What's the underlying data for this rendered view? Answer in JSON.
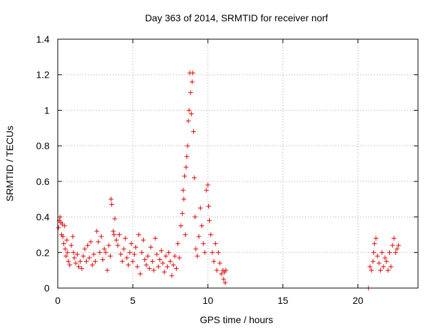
{
  "chart_data": {
    "type": "scatter",
    "title": "Day 363 of 2014, SRMTID for receiver norf",
    "xlabel": "GPS time / hours",
    "ylabel": "SRMTID / TECUs",
    "xlim": [
      0,
      24
    ],
    "ylim": [
      0,
      1.4
    ],
    "xticks": [
      0,
      5,
      10,
      15,
      20
    ],
    "xtick_labels": [
      "0",
      "5",
      "10",
      "15",
      "20"
    ],
    "yticks": [
      0,
      0.2,
      0.4,
      0.6,
      0.8,
      1.0,
      1.2,
      1.4
    ],
    "ytick_labels": [
      "0",
      "0.2",
      "0.4",
      "0.6",
      "0.8",
      "1",
      "1.2",
      "1.4"
    ],
    "grid": true,
    "marker": "plus",
    "series_color": "#e00000",
    "series": [
      {
        "name": "norf",
        "points": [
          [
            0.05,
            0.34
          ],
          [
            0.1,
            0.38
          ],
          [
            0.15,
            0.4
          ],
          [
            0.2,
            0.37
          ],
          [
            0.25,
            0.3
          ],
          [
            0.3,
            0.36
          ],
          [
            0.35,
            0.29
          ],
          [
            0.4,
            0.25
          ],
          [
            0.45,
            0.35
          ],
          [
            0.5,
            0.22
          ],
          [
            0.55,
            0.18
          ],
          [
            0.6,
            0.27
          ],
          [
            0.65,
            0.2
          ],
          [
            0.7,
            0.15
          ],
          [
            0.8,
            0.13
          ],
          [
            0.9,
            0.24
          ],
          [
            1.0,
            0.29
          ],
          [
            1.05,
            0.2
          ],
          [
            1.1,
            0.17
          ],
          [
            1.2,
            0.14
          ],
          [
            1.3,
            0.19
          ],
          [
            1.4,
            0.12
          ],
          [
            1.5,
            0.15
          ],
          [
            1.6,
            0.11
          ],
          [
            1.7,
            0.18
          ],
          [
            1.8,
            0.22
          ],
          [
            1.9,
            0.15
          ],
          [
            2.0,
            0.24
          ],
          [
            2.1,
            0.17
          ],
          [
            2.2,
            0.26
          ],
          [
            2.3,
            0.13
          ],
          [
            2.4,
            0.19
          ],
          [
            2.5,
            0.15
          ],
          [
            2.6,
            0.32
          ],
          [
            2.7,
            0.26
          ],
          [
            2.8,
            0.2
          ],
          [
            2.9,
            0.29
          ],
          [
            3.0,
            0.16
          ],
          [
            3.1,
            0.22
          ],
          [
            3.2,
            0.2
          ],
          [
            3.3,
            0.1
          ],
          [
            3.4,
            0.24
          ],
          [
            3.5,
            0.18
          ],
          [
            3.55,
            0.5
          ],
          [
            3.6,
            0.47
          ],
          [
            3.7,
            0.32
          ],
          [
            3.75,
            0.3
          ],
          [
            3.8,
            0.39
          ],
          [
            3.9,
            0.27
          ],
          [
            4.0,
            0.24
          ],
          [
            4.1,
            0.3
          ],
          [
            4.2,
            0.19
          ],
          [
            4.3,
            0.15
          ],
          [
            4.4,
            0.22
          ],
          [
            4.5,
            0.28
          ],
          [
            4.6,
            0.17
          ],
          [
            4.7,
            0.13
          ],
          [
            4.8,
            0.2
          ],
          [
            4.9,
            0.25
          ],
          [
            5.0,
            0.15
          ],
          [
            5.1,
            0.19
          ],
          [
            5.2,
            0.23
          ],
          [
            5.3,
            0.12
          ],
          [
            5.4,
            0.3
          ],
          [
            5.5,
            0.08
          ],
          [
            5.6,
            0.2
          ],
          [
            5.7,
            0.27
          ],
          [
            5.8,
            0.16
          ],
          [
            5.9,
            0.13
          ],
          [
            6.0,
            0.18
          ],
          [
            6.1,
            0.11
          ],
          [
            6.2,
            0.23
          ],
          [
            6.3,
            0.15
          ],
          [
            6.4,
            0.1
          ],
          [
            6.5,
            0.28
          ],
          [
            6.6,
            0.19
          ],
          [
            6.7,
            0.12
          ],
          [
            6.8,
            0.16
          ],
          [
            6.9,
            0.21
          ],
          [
            7.0,
            0.14
          ],
          [
            7.1,
            0.09
          ],
          [
            7.2,
            0.18
          ],
          [
            7.3,
            0.12
          ],
          [
            7.4,
            0.2
          ],
          [
            7.5,
            0.15
          ],
          [
            7.6,
            0.07
          ],
          [
            7.7,
            0.13
          ],
          [
            7.8,
            0.18
          ],
          [
            7.9,
            0.11
          ],
          [
            8.0,
            0.25
          ],
          [
            8.1,
            0.17
          ],
          [
            8.2,
            0.35
          ],
          [
            8.3,
            0.42
          ],
          [
            8.35,
            0.55
          ],
          [
            8.4,
            0.5
          ],
          [
            8.45,
            0.63
          ],
          [
            8.5,
            0.3
          ],
          [
            8.55,
            0.68
          ],
          [
            8.6,
            0.74
          ],
          [
            8.65,
            0.8
          ],
          [
            8.7,
            0.94
          ],
          [
            8.75,
            1.0
          ],
          [
            8.8,
            1.21
          ],
          [
            8.85,
            1.1
          ],
          [
            8.9,
            0.98
          ],
          [
            8.95,
            1.16
          ],
          [
            9.0,
            1.21
          ],
          [
            9.05,
            0.88
          ],
          [
            9.1,
            0.62
          ],
          [
            9.15,
            0.4
          ],
          [
            9.2,
            0.22
          ],
          [
            9.3,
            0.18
          ],
          [
            9.4,
            0.29
          ],
          [
            9.5,
            0.45
          ],
          [
            9.6,
            0.35
          ],
          [
            9.7,
            0.25
          ],
          [
            9.8,
            0.2
          ],
          [
            9.9,
            0.55
          ],
          [
            10.0,
            0.58
          ],
          [
            10.05,
            0.46
          ],
          [
            10.1,
            0.38
          ],
          [
            10.2,
            0.3
          ],
          [
            10.3,
            0.2
          ],
          [
            10.4,
            0.15
          ],
          [
            10.5,
            0.25
          ],
          [
            10.6,
            0.1
          ],
          [
            10.7,
            0.2
          ],
          [
            10.8,
            0.14
          ],
          [
            10.9,
            0.08
          ],
          [
            11.0,
            0.1
          ],
          [
            11.05,
            0.05
          ],
          [
            11.1,
            0.09
          ],
          [
            11.15,
            0.03
          ],
          [
            11.2,
            0.1
          ],
          [
            20.7,
            0.0
          ],
          [
            20.8,
            0.12
          ],
          [
            20.9,
            0.1
          ],
          [
            21.0,
            0.15
          ],
          [
            21.05,
            0.2
          ],
          [
            21.1,
            0.25
          ],
          [
            21.2,
            0.28
          ],
          [
            21.3,
            0.18
          ],
          [
            21.4,
            0.14
          ],
          [
            21.5,
            0.1
          ],
          [
            21.6,
            0.2
          ],
          [
            21.7,
            0.12
          ],
          [
            21.8,
            0.17
          ],
          [
            21.9,
            0.15
          ],
          [
            22.0,
            0.1
          ],
          [
            22.1,
            0.2
          ],
          [
            22.2,
            0.12
          ],
          [
            22.3,
            0.24
          ],
          [
            22.4,
            0.28
          ],
          [
            22.5,
            0.2
          ],
          [
            22.6,
            0.22
          ],
          [
            22.7,
            0.24
          ]
        ]
      }
    ]
  }
}
